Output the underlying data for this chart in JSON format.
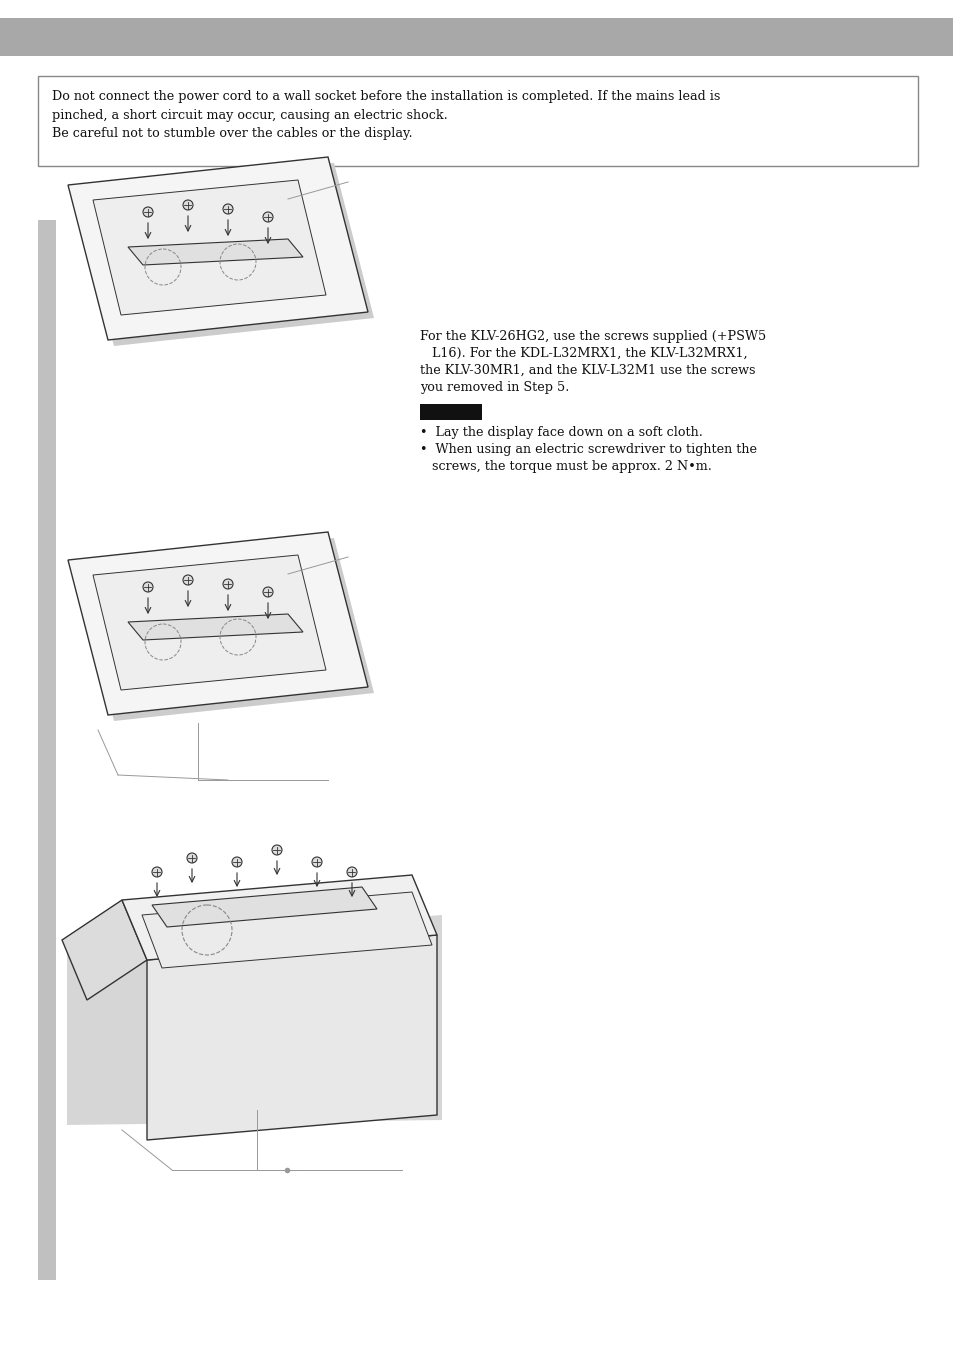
{
  "bg_color": "#ffffff",
  "header_color": "#a8a8a8",
  "sidebar_color": "#c0c0c0",
  "warning_text": "Do not connect the power cord to a wall socket before the installation is completed. If the mains lead is\npinched, a short circuit may occur, causing an electric shock.\nBe careful not to stumble over the cables or the display.",
  "right_text_lines": [
    "For the KLV-26HG2, use the screws supplied (+PSW5",
    "   L16). For the KDL-L32MRX1, the KLV-L32MRX1,",
    "the KLV-30MR1, and the KLV-L32M1 use the screws",
    "you removed in Step 5."
  ],
  "bullet_lines": [
    "•  Lay the display face down on a soft cloth.",
    "•  When using an electric screwdriver to tighten the",
    "   screws, the torque must be approx. 2 N•m."
  ],
  "note_color": "#111111",
  "line_color": "#333333",
  "gray_line": "#999999",
  "dash_color": "#888888"
}
